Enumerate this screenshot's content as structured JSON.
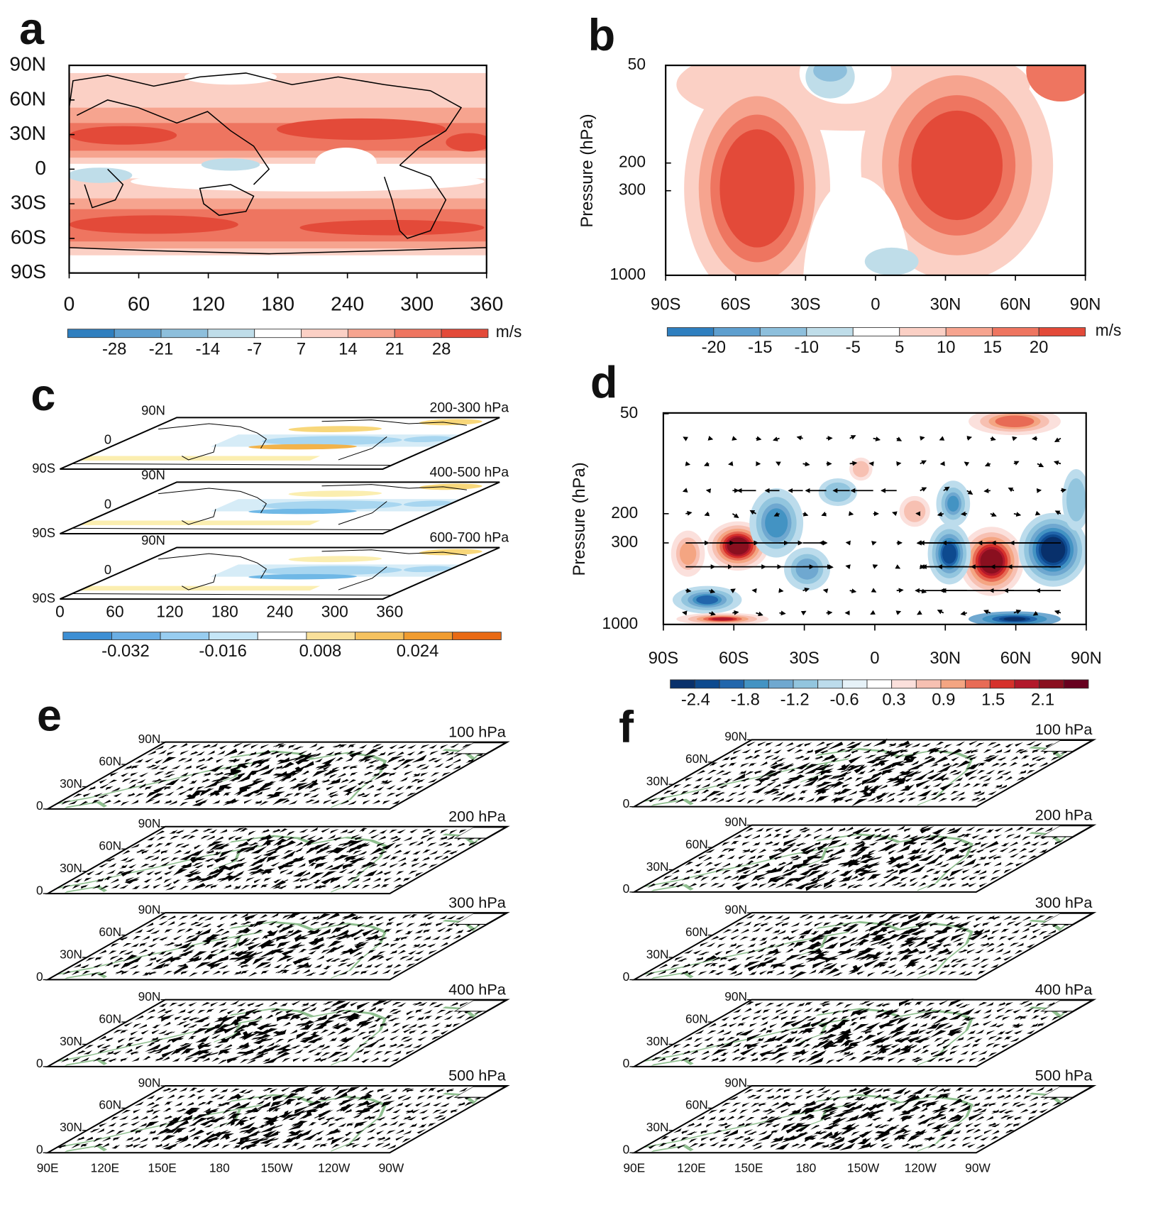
{
  "panels": {
    "a": {
      "label": "a",
      "yticks": [
        "90N",
        "60N",
        "30N",
        "0",
        "30S",
        "60S",
        "90S"
      ],
      "xticks": [
        "0",
        "60",
        "120",
        "180",
        "240",
        "300",
        "360"
      ],
      "colorbar": {
        "labels": [
          "-28",
          "-21",
          "-14",
          "-7",
          "7",
          "14",
          "21",
          "28"
        ],
        "unit": "m/s"
      }
    },
    "b": {
      "label": "b",
      "ylabel": "Pressure (hPa)",
      "yticks": [
        "50",
        "200",
        "300",
        "1000"
      ],
      "xticks": [
        "90S",
        "60S",
        "30S",
        "0",
        "30N",
        "60N",
        "90N"
      ],
      "colorbar": {
        "labels": [
          "-20",
          "-15",
          "-10",
          "-5",
          "5",
          "10",
          "15",
          "20"
        ],
        "unit": "m/s"
      }
    },
    "c": {
      "label": "c",
      "layers": [
        {
          "title": "200-300 hPa",
          "lat_labels": [
            "90N",
            "0",
            "90S"
          ]
        },
        {
          "title": "400-500 hPa",
          "lat_labels": [
            "90N",
            "0",
            "90S"
          ]
        },
        {
          "title": "600-700 hPa",
          "lat_labels": [
            "90N",
            "0",
            "90S"
          ]
        }
      ],
      "xticks": [
        "0",
        "60",
        "120",
        "180",
        "240",
        "300",
        "360"
      ],
      "colorbar": {
        "labels": [
          "-0.032",
          "-0.016",
          "0.008",
          "0.024"
        ]
      }
    },
    "d": {
      "label": "d",
      "ylabel": "Pressure (hPa)",
      "yticks": [
        "50",
        "200",
        "300",
        "1000"
      ],
      "xticks": [
        "90S",
        "60S",
        "30S",
        "0",
        "30N",
        "60N",
        "90N"
      ],
      "colorbar": {
        "labels": [
          "-2.4",
          "-1.8",
          "-1.2",
          "-0.6",
          "0.3",
          "0.9",
          "1.5",
          "2.1"
        ]
      }
    },
    "e": {
      "label": "e",
      "layers": [
        {
          "title": "100 hPa",
          "lat_labels": [
            "90N",
            "60N",
            "30N",
            "0"
          ]
        },
        {
          "title": "200 hPa",
          "lat_labels": [
            "90N",
            "60N",
            "30N",
            "0"
          ]
        },
        {
          "title": "300 hPa",
          "lat_labels": [
            "90N",
            "60N",
            "30N",
            "0"
          ]
        },
        {
          "title": "400 hPa",
          "lat_labels": [
            "90N",
            "60N",
            "30N",
            "0"
          ]
        },
        {
          "title": "500 hPa",
          "lat_labels": [
            "90N",
            "60N",
            "30N",
            "0"
          ]
        }
      ],
      "xticks": [
        "90E",
        "120E",
        "150E",
        "180",
        "150W",
        "120W",
        "90W"
      ]
    },
    "f": {
      "label": "f",
      "layers": [
        {
          "title": "100 hPa",
          "lat_labels": [
            "90N",
            "60N",
            "30N",
            "0"
          ]
        },
        {
          "title": "200 hPa",
          "lat_labels": [
            "90N",
            "60N",
            "30N",
            "0"
          ]
        },
        {
          "title": "300 hPa",
          "lat_labels": [
            "90N",
            "60N",
            "30N",
            "0"
          ]
        },
        {
          "title": "400 hPa",
          "lat_labels": [
            "90N",
            "60N",
            "30N",
            "0"
          ]
        },
        {
          "title": "500 hPa",
          "lat_labels": [
            "90N",
            "60N",
            "30N",
            "0"
          ]
        }
      ],
      "xticks": [
        "90E",
        "120E",
        "150E",
        "180",
        "150W",
        "120W",
        "90W"
      ]
    }
  }
}
